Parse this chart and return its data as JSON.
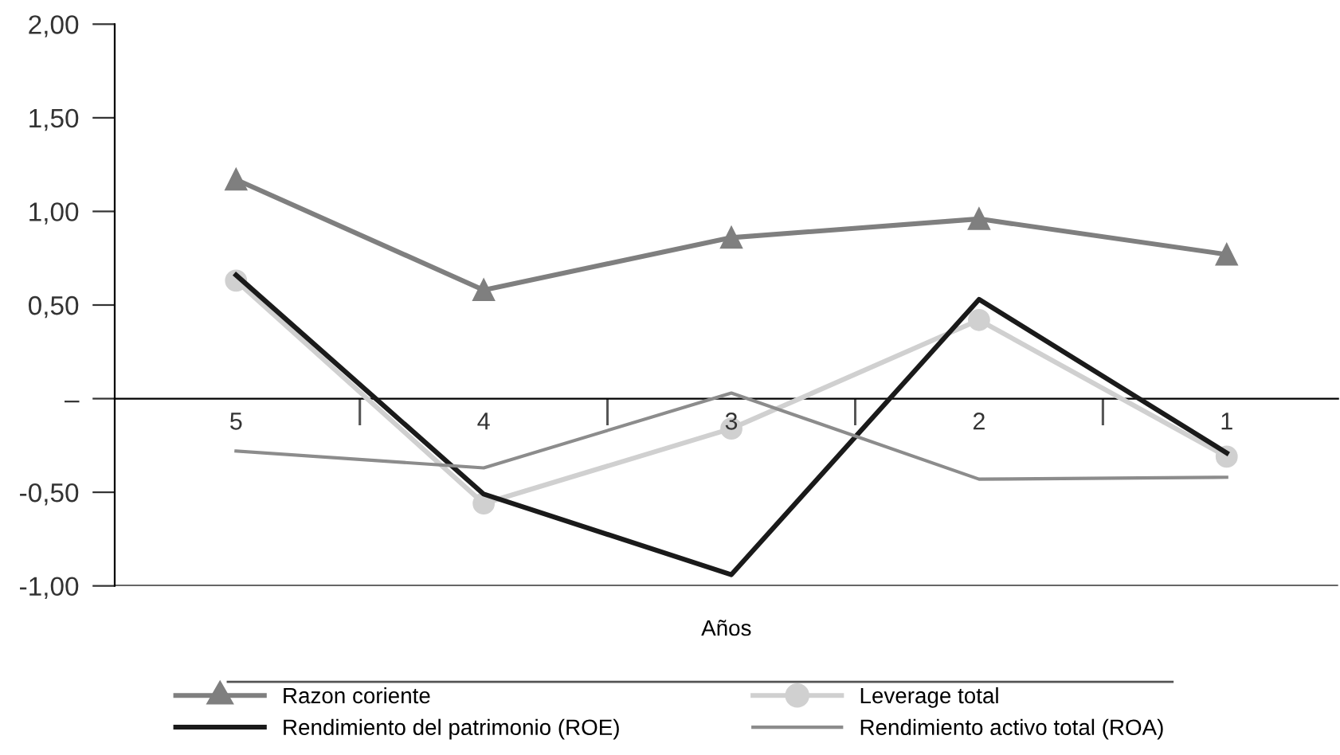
{
  "chart_data": {
    "type": "line",
    "xlabel": "Años",
    "categories": [
      "5",
      "4",
      "3",
      "2",
      "1"
    ],
    "series": [
      {
        "name": "Razon coriente",
        "color": "#7f7f7f",
        "marker": "triangle",
        "values": [
          1.17,
          0.58,
          0.86,
          0.96,
          0.77
        ]
      },
      {
        "name": "Leverage total",
        "color": "#d0d0d0",
        "marker": "circle",
        "values": [
          0.63,
          -0.56,
          -0.16,
          0.42,
          -0.31
        ]
      },
      {
        "name": "Rendimiento del patrimonio (ROE)",
        "color": "#1a1a1a",
        "marker": "none",
        "values": [
          0.66,
          -0.51,
          -0.94,
          0.53,
          -0.29
        ]
      },
      {
        "name": "Rendimiento activo total (ROA)",
        "color": "#8c8c8c",
        "marker": "none",
        "values": [
          -0.28,
          -0.37,
          0.03,
          -0.43,
          -0.42
        ]
      }
    ],
    "ylim": [
      -1,
      2
    ],
    "yticks": [
      {
        "value": 2,
        "label": "2,00"
      },
      {
        "value": 1.5,
        "label": "1,50"
      },
      {
        "value": 1,
        "label": "1,00"
      },
      {
        "value": 0.5,
        "label": "0,50"
      },
      {
        "value": 0,
        "label": "–"
      },
      {
        "value": -0.5,
        "label": "-0,50"
      },
      {
        "value": -1,
        "label": "-1,00"
      }
    ],
    "grid": false,
    "legend": "bottom",
    "line_style": "solid"
  }
}
